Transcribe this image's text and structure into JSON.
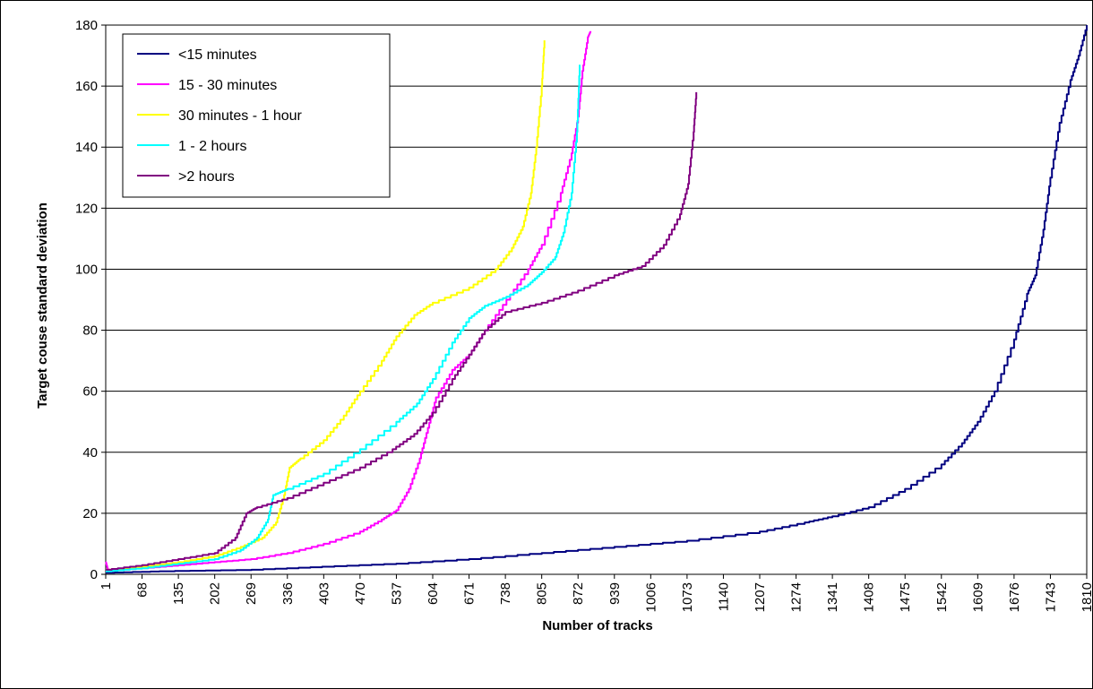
{
  "chart_data": {
    "type": "line",
    "title": "",
    "xlabel": "Number of tracks",
    "ylabel": "Target couse standard deviation",
    "xlim": [
      1,
      1810
    ],
    "ylim": [
      0,
      180
    ],
    "y_ticks": [
      0,
      20,
      40,
      60,
      80,
      100,
      120,
      140,
      160,
      180
    ],
    "x_ticks": [
      1,
      68,
      135,
      202,
      269,
      336,
      403,
      470,
      537,
      604,
      671,
      738,
      805,
      872,
      939,
      1006,
      1073,
      1140,
      1207,
      1274,
      1341,
      1408,
      1475,
      1542,
      1609,
      1676,
      1743,
      1810
    ],
    "grid": "horizontal",
    "legend_position": "top-left",
    "series": [
      {
        "name": "<15 minutes",
        "color": "#000080",
        "points": [
          [
            1,
            0.5
          ],
          [
            100,
            1
          ],
          [
            270,
            1.5
          ],
          [
            400,
            2.5
          ],
          [
            537,
            3.5
          ],
          [
            671,
            5
          ],
          [
            805,
            7
          ],
          [
            939,
            9
          ],
          [
            1073,
            11
          ],
          [
            1207,
            14
          ],
          [
            1290,
            17
          ],
          [
            1341,
            19
          ],
          [
            1408,
            22
          ],
          [
            1475,
            28
          ],
          [
            1542,
            36
          ],
          [
            1580,
            43
          ],
          [
            1609,
            50
          ],
          [
            1640,
            60
          ],
          [
            1676,
            77
          ],
          [
            1700,
            92
          ],
          [
            1715,
            98
          ],
          [
            1730,
            113
          ],
          [
            1743,
            130
          ],
          [
            1760,
            148
          ],
          [
            1780,
            162
          ],
          [
            1795,
            170
          ],
          [
            1810,
            180
          ]
        ]
      },
      {
        "name": "15 - 30 minutes",
        "color": "#ff00ff",
        "points": [
          [
            1,
            4
          ],
          [
            5,
            1.5
          ],
          [
            68,
            2
          ],
          [
            135,
            3
          ],
          [
            202,
            4
          ],
          [
            269,
            5
          ],
          [
            336,
            7
          ],
          [
            403,
            10
          ],
          [
            470,
            14
          ],
          [
            510,
            18
          ],
          [
            537,
            21
          ],
          [
            560,
            28
          ],
          [
            580,
            38
          ],
          [
            595,
            48
          ],
          [
            610,
            58
          ],
          [
            640,
            67
          ],
          [
            671,
            72
          ],
          [
            700,
            80
          ],
          [
            740,
            90
          ],
          [
            780,
            100
          ],
          [
            805,
            108
          ],
          [
            840,
            125
          ],
          [
            860,
            138
          ],
          [
            872,
            150
          ],
          [
            880,
            165
          ],
          [
            890,
            176
          ],
          [
            895,
            178
          ]
        ]
      },
      {
        "name": "30 minutes - 1 hour",
        "color": "#ffff00",
        "points": [
          [
            1,
            1.5
          ],
          [
            68,
            2.5
          ],
          [
            135,
            4
          ],
          [
            202,
            6
          ],
          [
            250,
            9
          ],
          [
            290,
            12
          ],
          [
            315,
            17
          ],
          [
            330,
            26
          ],
          [
            340,
            35
          ],
          [
            360,
            38
          ],
          [
            403,
            44
          ],
          [
            440,
            52
          ],
          [
            470,
            60
          ],
          [
            510,
            70
          ],
          [
            537,
            78
          ],
          [
            570,
            85
          ],
          [
            604,
            89
          ],
          [
            671,
            94
          ],
          [
            720,
            100
          ],
          [
            750,
            107
          ],
          [
            770,
            114
          ],
          [
            785,
            125
          ],
          [
            795,
            140
          ],
          [
            805,
            160
          ],
          [
            810,
            175
          ]
        ]
      },
      {
        "name": "1 - 2 hours",
        "color": "#00ffff",
        "points": [
          [
            1,
            1
          ],
          [
            68,
            2
          ],
          [
            135,
            3.5
          ],
          [
            202,
            5
          ],
          [
            250,
            8
          ],
          [
            280,
            12
          ],
          [
            300,
            18
          ],
          [
            310,
            26
          ],
          [
            336,
            28
          ],
          [
            403,
            33
          ],
          [
            470,
            41
          ],
          [
            537,
            50
          ],
          [
            575,
            56
          ],
          [
            604,
            64
          ],
          [
            640,
            76
          ],
          [
            671,
            84
          ],
          [
            700,
            88
          ],
          [
            740,
            91
          ],
          [
            780,
            95
          ],
          [
            805,
            99
          ],
          [
            830,
            104
          ],
          [
            845,
            112
          ],
          [
            860,
            125
          ],
          [
            870,
            145
          ],
          [
            875,
            167
          ]
        ]
      },
      {
        "name": ">2 hours",
        "color": "#800080",
        "points": [
          [
            1,
            1.5
          ],
          [
            68,
            3
          ],
          [
            135,
            5
          ],
          [
            202,
            7
          ],
          [
            240,
            12
          ],
          [
            260,
            20
          ],
          [
            280,
            22
          ],
          [
            336,
            25
          ],
          [
            403,
            30
          ],
          [
            470,
            35
          ],
          [
            530,
            41
          ],
          [
            570,
            46
          ],
          [
            604,
            53
          ],
          [
            640,
            64
          ],
          [
            671,
            72
          ],
          [
            700,
            80
          ],
          [
            738,
            86
          ],
          [
            805,
            89
          ],
          [
            872,
            93
          ],
          [
            939,
            98
          ],
          [
            990,
            101
          ],
          [
            1030,
            108
          ],
          [
            1060,
            118
          ],
          [
            1075,
            128
          ],
          [
            1085,
            145
          ],
          [
            1090,
            158
          ]
        ]
      }
    ]
  }
}
